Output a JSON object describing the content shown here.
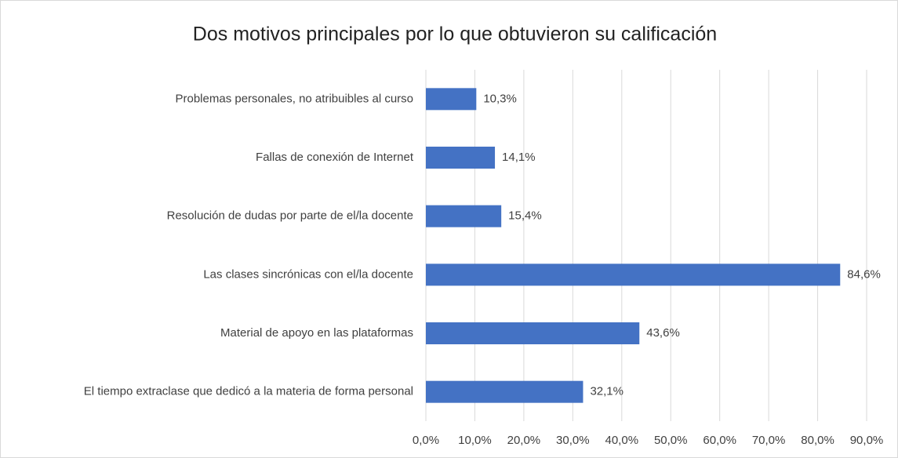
{
  "chart_data": {
    "type": "barh",
    "title": "Dos motivos principales por lo que obtuvieron su calificación",
    "categories": [
      "Problemas personales, no atribuibles al curso",
      "Fallas de conexión de Internet",
      "Resolución de dudas por parte de el/la docente",
      "Las clases sincrónicas con el/la docente",
      "Material de apoyo en las plataformas",
      "El tiempo extraclase que dedicó a la materia de forma personal"
    ],
    "values": [
      10.3,
      14.1,
      15.4,
      84.6,
      43.6,
      32.1
    ],
    "value_labels": [
      "10,3%",
      "14,1%",
      "15,4%",
      "84,6%",
      "43,6%",
      "32,1%"
    ],
    "color": "#4472c4",
    "xlim": [
      0,
      90
    ],
    "xticks": [
      {
        "value": 0,
        "label": "0,0%"
      },
      {
        "value": 10,
        "label": "10,0%"
      },
      {
        "value": 20,
        "label": "20,0%"
      },
      {
        "value": 30,
        "label": "30,0%"
      },
      {
        "value": 40,
        "label": "40,0%"
      },
      {
        "value": 50,
        "label": "50,0%"
      },
      {
        "value": 60,
        "label": "60,0%"
      },
      {
        "value": 70,
        "label": "70,0%"
      },
      {
        "value": 80,
        "label": "80,0%"
      },
      {
        "value": 90,
        "label": "90,0%"
      }
    ],
    "grid": true
  }
}
